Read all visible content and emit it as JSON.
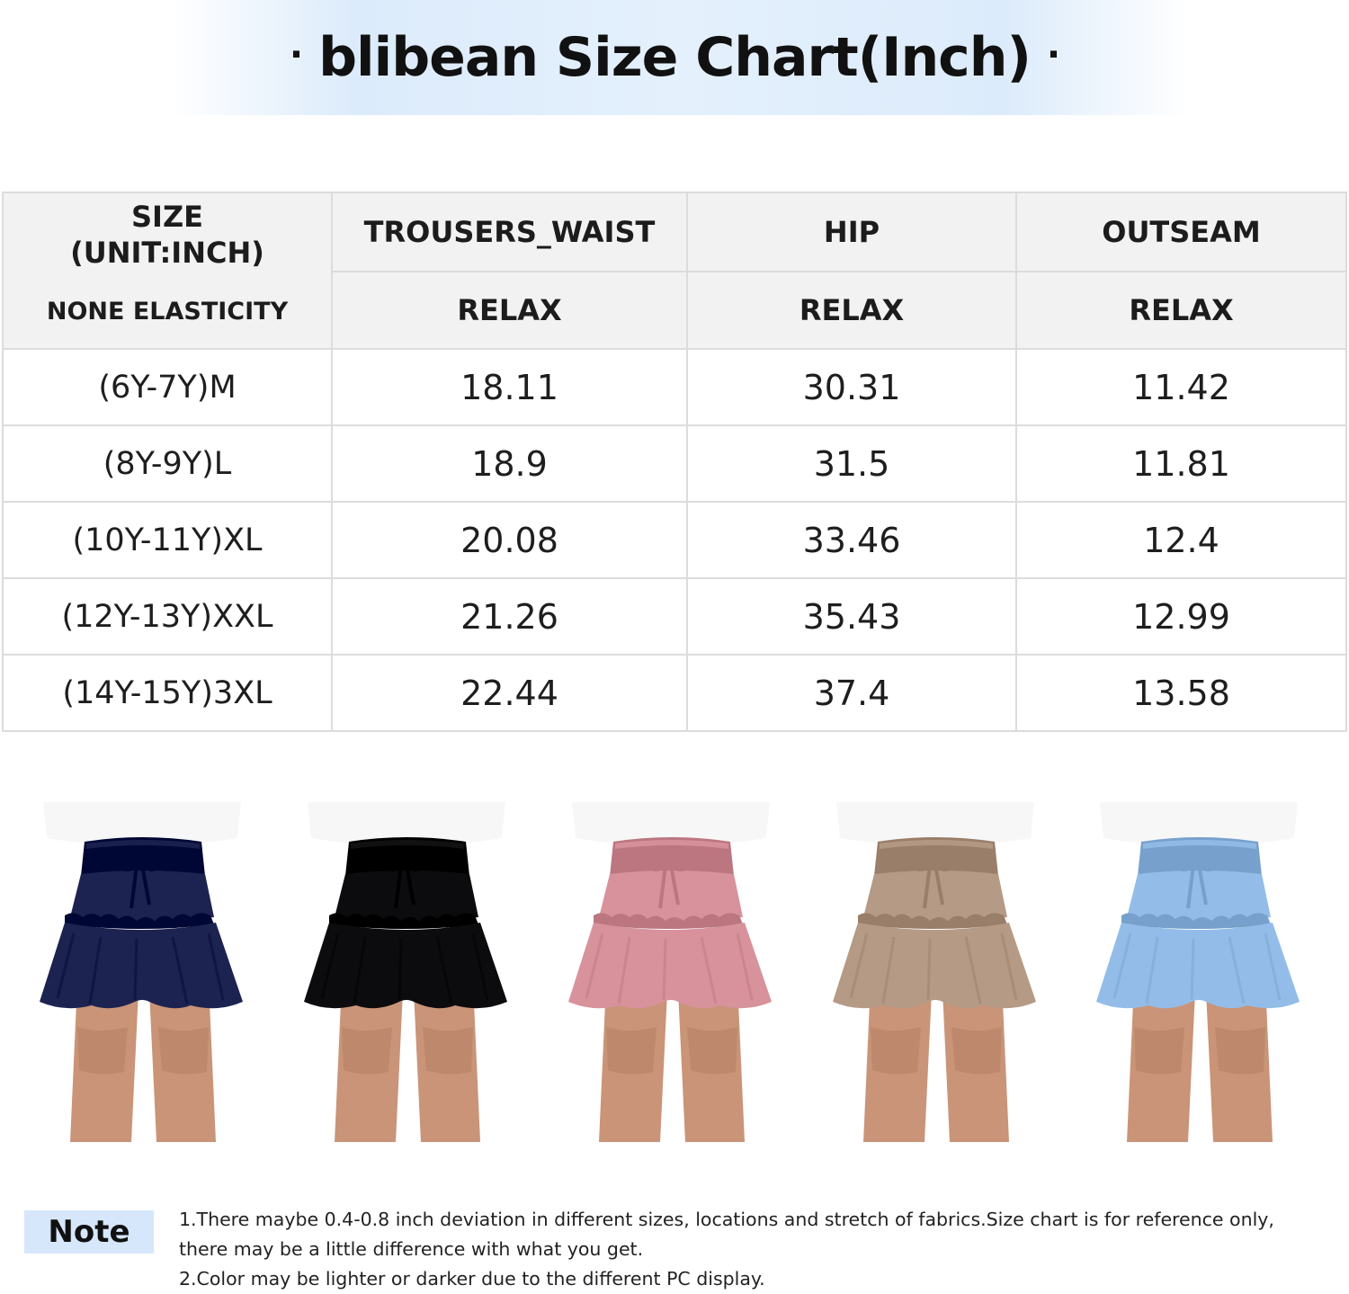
{
  "title": {
    "dot_left": "·",
    "text": "blibean Size Chart(Inch)",
    "dot_right": "·"
  },
  "table": {
    "size_header": "SIZE",
    "size_unit": "(UNIT:INCH)",
    "elasticity": "NONE ELASTICITY",
    "columns": [
      "TROUSERS_WAIST",
      "HIP",
      "OUTSEAM"
    ],
    "sub_headers": [
      "RELAX",
      "RELAX",
      "RELAX"
    ],
    "rows": [
      {
        "size": "(6Y-7Y)M",
        "values": [
          "18.11",
          "30.31",
          "11.42"
        ]
      },
      {
        "size": "(8Y-9Y)L",
        "values": [
          "18.9",
          "31.5",
          "11.81"
        ]
      },
      {
        "size": "(10Y-11Y)XL",
        "values": [
          "20.08",
          "33.46",
          "12.4"
        ]
      },
      {
        "size": "(12Y-13Y)XXL",
        "values": [
          "21.26",
          "35.43",
          "12.99"
        ]
      },
      {
        "size": "(14Y-15Y)3XL",
        "values": [
          "22.44",
          "37.4",
          "13.58"
        ]
      }
    ]
  },
  "products": [
    {
      "color_name": "navy",
      "color": "#1c2350"
    },
    {
      "color_name": "black",
      "color": "#0c0c0e"
    },
    {
      "color_name": "pink",
      "color": "#d7929c"
    },
    {
      "color_name": "khaki",
      "color": "#b59a86"
    },
    {
      "color_name": "light-blue",
      "color": "#93bde8"
    }
  ],
  "note": {
    "label": "Note",
    "line1": "1.There maybe 0.4-0.8 inch deviation in different sizes, locations and  stretch of fabrics.Size chart is for reference only,",
    "line2": "there may be a little difference with what you get.",
    "line3": "2.Color may be lighter or darker due to the different PC display."
  }
}
